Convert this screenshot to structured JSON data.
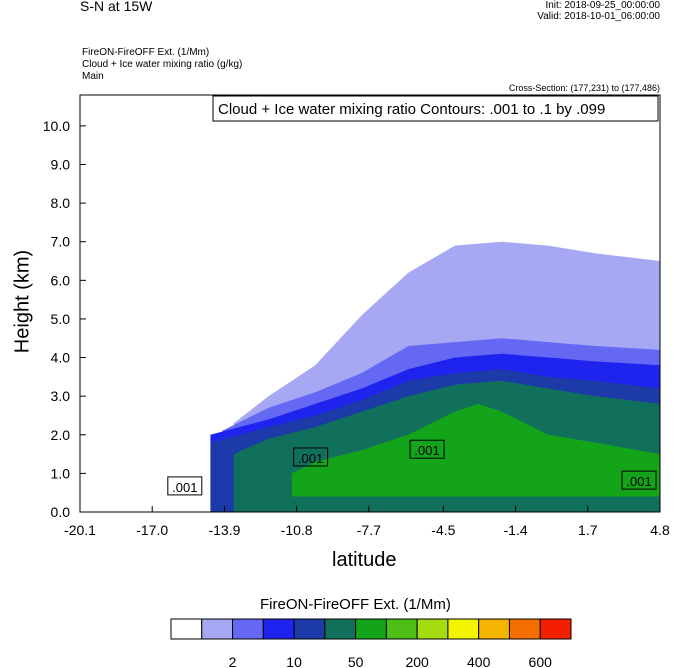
{
  "header": {
    "title": "S-N at 15W",
    "init": "Init: 2018-09-25_00:00:00",
    "valid": "Valid: 2018-10-01_06:00:00",
    "field_line1": "FireON-FireOFF Ext.   (1/Mm)",
    "field_line2": "Cloud + Ice water mixing ratio   (g/kg)",
    "field_line3": "Main",
    "cross_section": "Cross-Section: (177,231) to (177,486)"
  },
  "chart_data": {
    "type": "heatmap",
    "title": "S-N at 15W",
    "contour_info": "Cloud + Ice water mixing ratio Contours: .001 to .1 by .099",
    "xlabel": "latitude",
    "ylabel": "Height (km)",
    "x_ticks": [
      "-20.1",
      "-17.0",
      "-13.9",
      "-10.8",
      "-7.7",
      "-4.5",
      "-1.4",
      "1.7",
      "4.8"
    ],
    "x_tick_values": [
      -20.1,
      -17.0,
      -13.9,
      -10.8,
      -7.7,
      -4.5,
      -1.4,
      1.7,
      4.8
    ],
    "xlim": [
      -20.1,
      4.8
    ],
    "y_ticks": [
      "0.0",
      "1.0",
      "2.0",
      "3.0",
      "4.0",
      "5.0",
      "6.0",
      "7.0",
      "8.0",
      "9.0",
      "10.0"
    ],
    "y_tick_values": [
      0,
      1,
      2,
      3,
      4,
      5,
      6,
      7,
      8,
      9,
      10
    ],
    "ylim": [
      0,
      10.8
    ],
    "contour_labels": [
      {
        "text": ".001",
        "x": -15.6,
        "y": 0.65
      },
      {
        "text": ".001",
        "x": -10.2,
        "y": 1.4
      },
      {
        "text": ".001",
        "x": -5.2,
        "y": 1.6
      },
      {
        "text": ".001",
        "x": 3.9,
        "y": 0.8
      }
    ],
    "colorbar": {
      "title": "FireON-FireOFF Ext.  (1/Mm)",
      "colors": [
        "#ffffff",
        "#a6a8f4",
        "#6468f2",
        "#1e23ee",
        "#1c3aa8",
        "#11705c",
        "#13a41a",
        "#4cbe16",
        "#a4dc10",
        "#f4f400",
        "#f4b400",
        "#f46e00",
        "#f41e00"
      ],
      "tick_labels": [
        "2",
        "10",
        "50",
        "200",
        "400",
        "600"
      ]
    },
    "layers": [
      {
        "color_index": 1,
        "x": [
          -13.5,
          -12,
          -10,
          -8,
          -6,
          -4,
          -2,
          0,
          2,
          4.8,
          4.8
        ],
        "ytop": [
          2.3,
          3.0,
          3.8,
          5.1,
          6.2,
          6.9,
          7.0,
          6.9,
          6.7,
          6.5,
          0
        ],
        "ybot": 0
      },
      {
        "color_index": 2,
        "x": [
          -14,
          -12,
          -10,
          -8,
          -6,
          -4,
          -2,
          0,
          2,
          4.8
        ],
        "ytop": [
          2.1,
          2.7,
          3.1,
          3.6,
          4.3,
          4.4,
          4.5,
          4.4,
          4.3,
          4.2
        ],
        "ybot": 0
      },
      {
        "color_index": 3,
        "x": [
          -14.5,
          -12,
          -10,
          -8,
          -6,
          -4,
          -2,
          0,
          2,
          4.8
        ],
        "ytop": [
          2.0,
          2.4,
          2.8,
          3.2,
          3.7,
          4.0,
          4.1,
          4.0,
          3.9,
          3.8
        ],
        "ybot": 0
      },
      {
        "color_index": 4,
        "x": [
          -14.5,
          -12,
          -10,
          -8,
          -6,
          -4,
          -2,
          0,
          2,
          4.8
        ],
        "ytop": [
          1.8,
          2.2,
          2.5,
          2.9,
          3.4,
          3.6,
          3.7,
          3.5,
          3.4,
          3.2
        ],
        "ybot": 0
      },
      {
        "color_index": 5,
        "x": [
          -13.5,
          -12,
          -10,
          -8,
          -6,
          -4,
          -2,
          0,
          2,
          4.8
        ],
        "ytop": [
          1.5,
          1.9,
          2.2,
          2.6,
          3.0,
          3.3,
          3.4,
          3.2,
          3.0,
          2.8
        ],
        "ybot": 0
      },
      {
        "color_index": 6,
        "x": [
          -11,
          -10,
          -8,
          -6,
          -4,
          -3,
          -2,
          0,
          2,
          4.8
        ],
        "ytop": [
          1.0,
          1.3,
          1.6,
          2.0,
          2.6,
          2.8,
          2.6,
          2.0,
          1.8,
          1.5
        ],
        "ybot": 0.4
      }
    ]
  }
}
